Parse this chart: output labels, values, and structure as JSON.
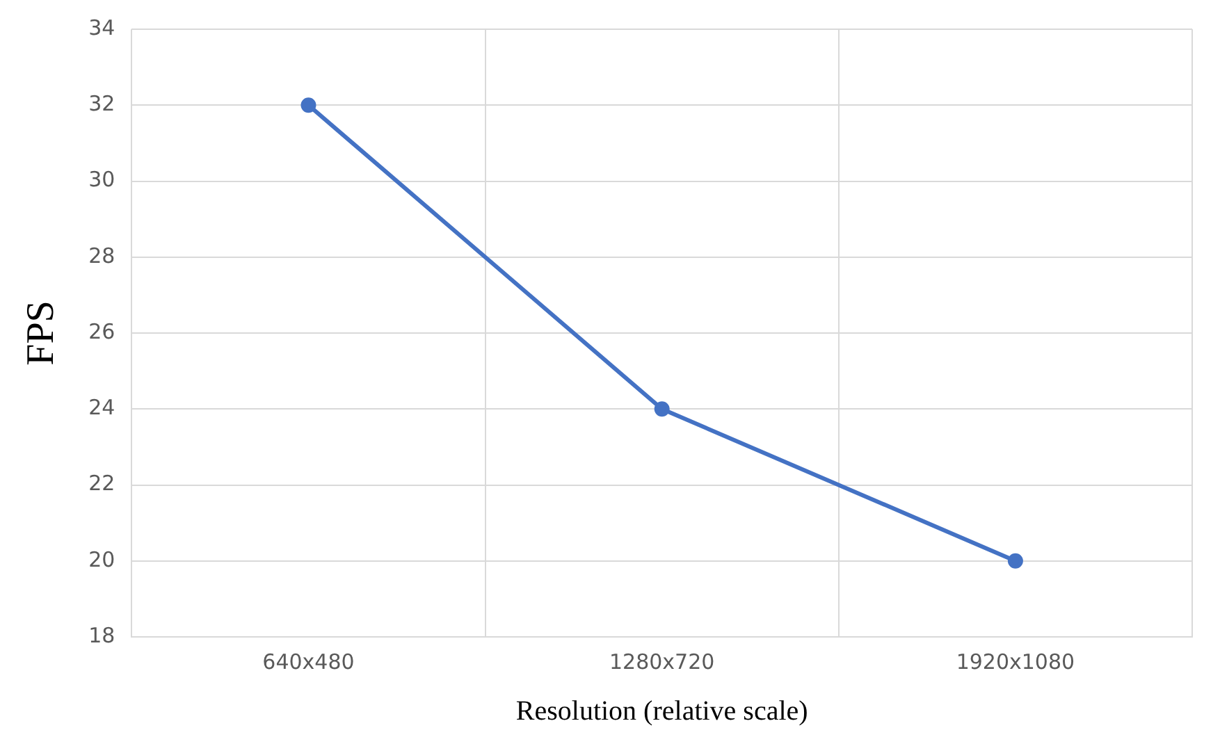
{
  "chart_data": {
    "type": "line",
    "xlabel": "Resolution (relative scale)",
    "ylabel": "FPS",
    "categories": [
      "640x480",
      "1280x720",
      "1920x1080"
    ],
    "series": [
      {
        "color": "#4472c4",
        "values": [
          32,
          24,
          20
        ]
      }
    ],
    "ylim": [
      18,
      34
    ],
    "yticks": [
      18,
      20,
      22,
      24,
      26,
      28,
      30,
      32,
      34
    ],
    "grid": true,
    "legend": false,
    "marker": "circle",
    "line_style": "solid"
  }
}
